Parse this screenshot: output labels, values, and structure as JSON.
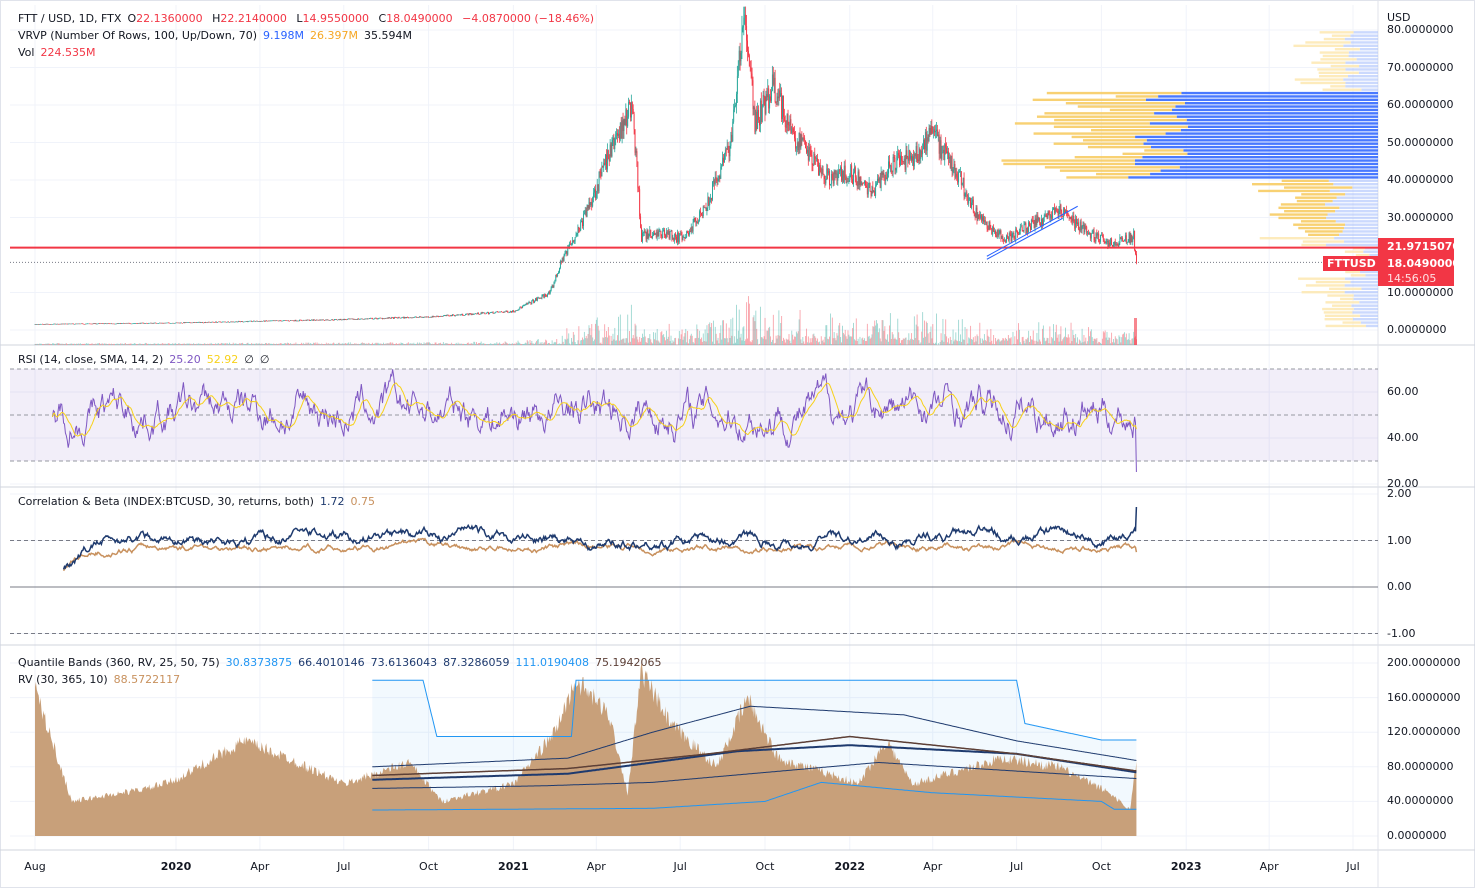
{
  "legend": {
    "main": {
      "symbol": "FTT / USD, 1D, FTX",
      "o_label": "O",
      "open": "22.1360000",
      "h_label": "H",
      "high": "22.2140000",
      "l_label": "L",
      "low": "14.9550000",
      "c_label": "C",
      "close": "18.0490000",
      "change": "−4.0870000 (−18.46%)"
    },
    "vrvp": {
      "title": "VRVP (Number Of Rows, 100, Up/Down, 70)",
      "up": "9.198M",
      "down": "26.397M",
      "total": "35.594M"
    },
    "vol": {
      "title": "Vol",
      "value": "224.535M"
    },
    "rsi": {
      "title": "RSI (14, close, SMA, 14, 2)",
      "rsi": "25.20",
      "sma": "52.92",
      "b1": "∅",
      "b2": "∅"
    },
    "corr": {
      "title": "Correlation & Beta (INDEX:BTCUSD, 30, returns, both)",
      "beta": "1.72",
      "corr": "0.75"
    },
    "qb": {
      "title": "Quantile Bands (360, RV, 25, 50, 75)",
      "v1": "30.8373875",
      "v2": "66.4010146",
      "v3": "73.6136043",
      "v4": "87.3286059",
      "v5": "111.0190408",
      "v6": "75.1942065"
    },
    "rv": {
      "title": "RV (30, 365, 10)",
      "value": "88.5722117"
    }
  },
  "axis": {
    "currency": "USD",
    "price_ticks": [
      "80.0000000",
      "70.0000000",
      "60.0000000",
      "50.0000000",
      "40.0000000",
      "30.0000000",
      "10.0000000",
      "0.0000000"
    ],
    "rsi_ticks": [
      "60.00",
      "40.00",
      "20.00"
    ],
    "corr_ticks": [
      "2.00",
      "1.00",
      "0.00",
      "-1.00"
    ],
    "qb_ticks": [
      "200.0000000",
      "160.0000000",
      "120.0000000",
      "80.0000000",
      "40.0000000",
      "0.0000000"
    ],
    "time_ticks": [
      {
        "label": "Aug",
        "date": "2019-08-01",
        "bold": false
      },
      {
        "label": "2020",
        "date": "2020-01-01",
        "bold": true
      },
      {
        "label": "Apr",
        "date": "2020-04-01",
        "bold": false
      },
      {
        "label": "Jul",
        "date": "2020-07-01",
        "bold": false
      },
      {
        "label": "Oct",
        "date": "2020-10-01",
        "bold": false
      },
      {
        "label": "2021",
        "date": "2021-01-01",
        "bold": true
      },
      {
        "label": "Apr",
        "date": "2021-04-01",
        "bold": false
      },
      {
        "label": "Jul",
        "date": "2021-07-01",
        "bold": false
      },
      {
        "label": "Oct",
        "date": "2021-10-01",
        "bold": false
      },
      {
        "label": "2022",
        "date": "2022-01-01",
        "bold": true
      },
      {
        "label": "Apr",
        "date": "2022-04-01",
        "bold": false
      },
      {
        "label": "Jul",
        "date": "2022-07-01",
        "bold": false
      },
      {
        "label": "Oct",
        "date": "2022-10-01",
        "bold": false
      },
      {
        "label": "2023",
        "date": "2023-01-01",
        "bold": true
      },
      {
        "label": "Apr",
        "date": "2023-04-01",
        "bold": false
      },
      {
        "label": "Jul",
        "date": "2023-07-01",
        "bold": false
      }
    ]
  },
  "tags": {
    "line_price": "21.9715070",
    "symbol": "FTTUSD",
    "last_price": "18.0490000",
    "countdown": "14:56:05"
  },
  "colors": {
    "up": "#26a69a",
    "down": "#f23645",
    "vp_up": "#2962ff",
    "vp_down": "#f5a623",
    "rsi": "#7e57c2",
    "rsi_ma": "#f7d11a",
    "beta": "#1e3a6e",
    "corr": "#c8915e",
    "rv": "#c8a07a",
    "qb_outer": "#2196f3",
    "qb_inner": "#1e3a6e",
    "qb_mean": "#5d4037"
  },
  "chart_data": [
    {
      "type": "candlestick",
      "title": "FTT / USD, 1D, FTX",
      "ylim": [
        0,
        80
      ],
      "horizontal_line": 21.9715,
      "price_keypoints": [
        [
          "2019-08-01",
          1.5
        ],
        [
          "2019-09-01",
          1.6
        ],
        [
          "2020-01-01",
          1.9
        ],
        [
          "2020-07-01",
          2.8
        ],
        [
          "2020-10-01",
          3.5
        ],
        [
          "2021-01-01",
          5
        ],
        [
          "2021-02-10",
          10
        ],
        [
          "2021-02-25",
          20
        ],
        [
          "2021-03-15",
          28
        ],
        [
          "2021-04-01",
          38
        ],
        [
          "2021-04-20",
          50
        ],
        [
          "2021-05-10",
          60
        ],
        [
          "2021-05-20",
          25
        ],
        [
          "2021-06-15",
          26
        ],
        [
          "2021-07-05",
          24
        ],
        [
          "2021-08-01",
          35
        ],
        [
          "2021-08-25",
          50
        ],
        [
          "2021-09-09",
          84
        ],
        [
          "2021-09-20",
          55
        ],
        [
          "2021-10-10",
          65
        ],
        [
          "2021-11-01",
          52
        ],
        [
          "2021-12-10",
          40
        ],
        [
          "2022-01-01",
          42
        ],
        [
          "2022-01-25",
          37
        ],
        [
          "2022-02-15",
          44
        ],
        [
          "2022-03-10",
          46
        ],
        [
          "2022-04-01",
          52
        ],
        [
          "2022-05-01",
          40
        ],
        [
          "2022-05-20",
          30
        ],
        [
          "2022-06-18",
          24
        ],
        [
          "2022-08-15",
          32
        ],
        [
          "2022-09-15",
          26
        ],
        [
          "2022-10-10",
          23
        ],
        [
          "2022-11-05",
          25
        ],
        [
          "2022-11-08",
          18.05
        ]
      ],
      "volume_last": "224.535M",
      "trendline_channel": [
        [
          "2022-06-15",
          21
        ],
        [
          "2022-08-20",
          33
        ]
      ]
    },
    {
      "type": "line",
      "title": "RSI (14, close, SMA, 14, 2)",
      "ylim": [
        20,
        75
      ],
      "bands": [
        30,
        70
      ],
      "midline": 50,
      "last": {
        "rsi": 25.2,
        "sma": 52.92
      }
    },
    {
      "type": "line",
      "title": "Correlation & Beta (INDEX:BTCUSD, 30, returns, both)",
      "ylim": [
        -1.1,
        2
      ],
      "last": {
        "beta": 1.72,
        "corr": 0.75
      }
    },
    {
      "type": "area",
      "title": "Quantile Bands (360, RV, 25, 50, 75)",
      "ylim": [
        0,
        200
      ],
      "rv_keypoints": [
        [
          "2019-08-01",
          170
        ],
        [
          "2019-09-10",
          40
        ],
        [
          "2019-12-01",
          55
        ],
        [
          "2020-01-01",
          65
        ],
        [
          "2020-03-15",
          110
        ],
        [
          "2020-05-01",
          90
        ],
        [
          "2020-07-01",
          60
        ],
        [
          "2020-09-10",
          85
        ],
        [
          "2020-10-15",
          40
        ],
        [
          "2021-01-01",
          60
        ],
        [
          "2021-02-15",
          120
        ],
        [
          "2021-03-10",
          180
        ],
        [
          "2021-04-15",
          140
        ],
        [
          "2021-05-05",
          50
        ],
        [
          "2021-05-20",
          190
        ],
        [
          "2021-06-20",
          130
        ],
        [
          "2021-08-10",
          80
        ],
        [
          "2021-09-12",
          160
        ],
        [
          "2021-10-15",
          90
        ],
        [
          "2021-12-15",
          70
        ],
        [
          "2022-01-10",
          60
        ],
        [
          "2022-02-10",
          110
        ],
        [
          "2022-03-10",
          60
        ],
        [
          "2022-06-15",
          90
        ],
        [
          "2022-08-15",
          80
        ],
        [
          "2022-10-10",
          50
        ],
        [
          "2022-11-01",
          30
        ],
        [
          "2022-11-08",
          88.57
        ]
      ],
      "band_max": [
        [
          "2020-08-01",
          180
        ],
        [
          "2020-09-25",
          180
        ],
        [
          "2020-10-10",
          115
        ],
        [
          "2021-03-05",
          115
        ],
        [
          "2021-03-10",
          180
        ],
        [
          "2022-07-01",
          180
        ],
        [
          "2022-07-10",
          130
        ],
        [
          "2022-10-01",
          111
        ],
        [
          "2022-11-08",
          111.02
        ]
      ],
      "band_min": [
        [
          "2020-08-01",
          30
        ],
        [
          "2021-06-01",
          32
        ],
        [
          "2021-10-01",
          40
        ],
        [
          "2021-12-01",
          62
        ],
        [
          "2022-04-01",
          50
        ],
        [
          "2022-10-01",
          40
        ],
        [
          "2022-10-15",
          30.84
        ],
        [
          "2022-11-08",
          30.84
        ]
      ],
      "q25": [
        [
          "2020-08-01",
          55
        ],
        [
          "2021-02-01",
          58
        ],
        [
          "2021-06-01",
          62
        ],
        [
          "2022-02-01",
          85
        ],
        [
          "2022-11-08",
          66.4
        ]
      ],
      "q50": [
        [
          "2020-08-01",
          65
        ],
        [
          "2021-03-01",
          72
        ],
        [
          "2021-09-01",
          98
        ],
        [
          "2022-01-01",
          105
        ],
        [
          "2022-07-01",
          95
        ],
        [
          "2022-11-08",
          73.61
        ]
      ],
      "q75": [
        [
          "2020-08-01",
          80
        ],
        [
          "2021-03-01",
          90
        ],
        [
          "2021-06-01",
          120
        ],
        [
          "2021-09-15",
          150
        ],
        [
          "2022-03-01",
          140
        ],
        [
          "2022-07-01",
          110
        ],
        [
          "2022-11-08",
          87.33
        ]
      ],
      "mean": [
        [
          "2020-08-01",
          70
        ],
        [
          "2021-03-01",
          78
        ],
        [
          "2021-08-01",
          95
        ],
        [
          "2022-01-01",
          115
        ],
        [
          "2022-07-01",
          95
        ],
        [
          "2022-11-08",
          75.19
        ]
      ]
    }
  ]
}
